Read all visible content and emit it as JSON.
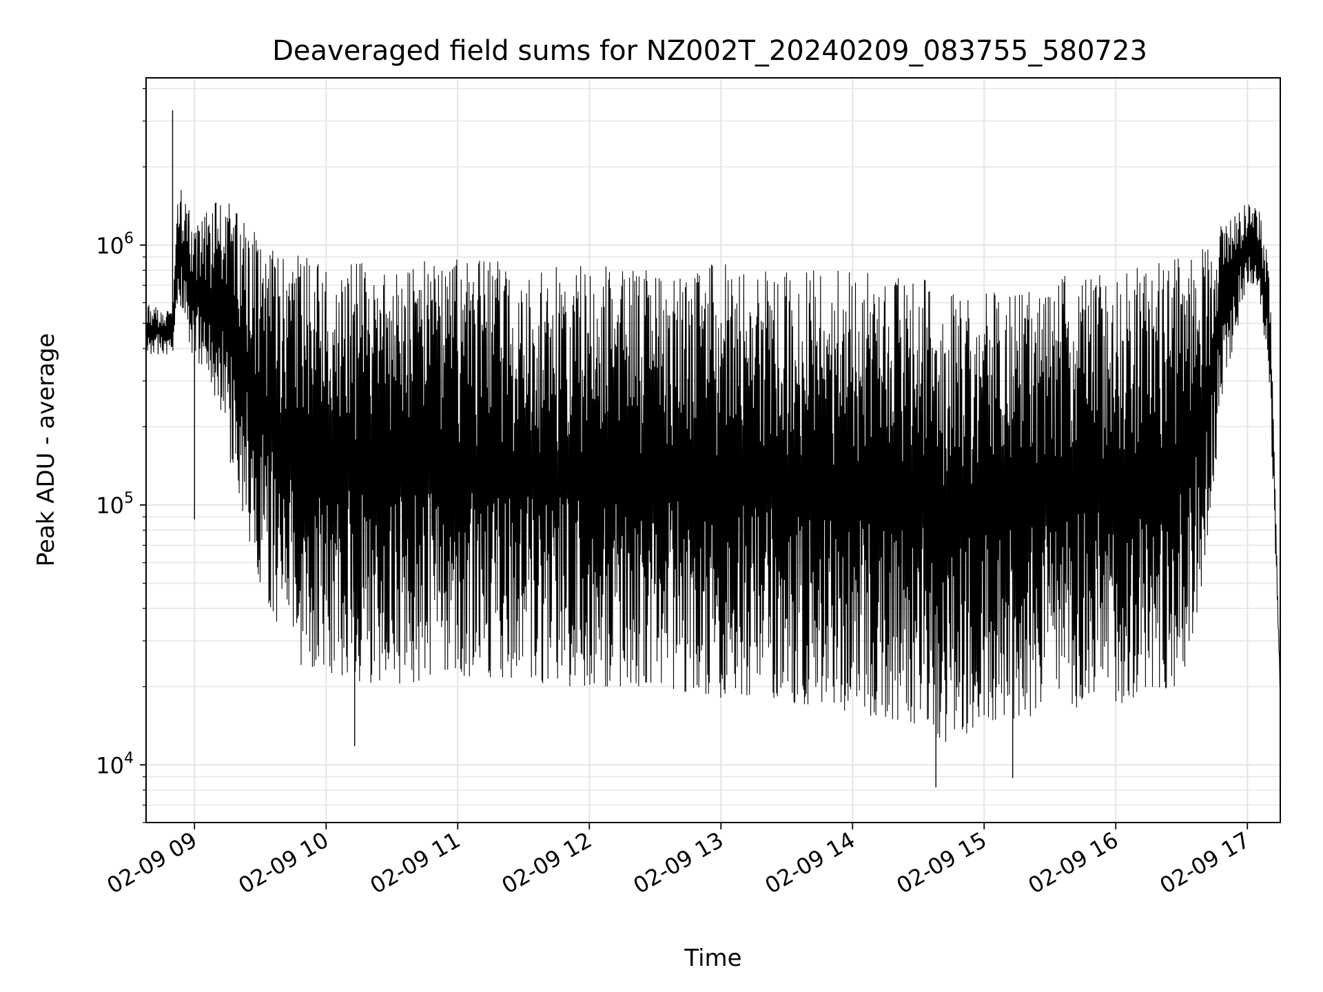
{
  "chart_data": {
    "type": "line",
    "title": "Deaveraged field sums for NZ002T_20240209_083755_580723",
    "xlabel": "Time",
    "ylabel": "Peak ADU - average",
    "yscale": "log",
    "grid": true,
    "xlim": [
      "2024-02-09T08:37:55",
      "2024-02-09T17:15:00"
    ],
    "ylim": [
      6000,
      4400000
    ],
    "x_ticks": [
      {
        "t": "2024-02-09T09:00:00",
        "label": "02-09 09"
      },
      {
        "t": "2024-02-09T10:00:00",
        "label": "02-09 10"
      },
      {
        "t": "2024-02-09T11:00:00",
        "label": "02-09 11"
      },
      {
        "t": "2024-02-09T12:00:00",
        "label": "02-09 12"
      },
      {
        "t": "2024-02-09T13:00:00",
        "label": "02-09 13"
      },
      {
        "t": "2024-02-09T14:00:00",
        "label": "02-09 14"
      },
      {
        "t": "2024-02-09T15:00:00",
        "label": "02-09 15"
      },
      {
        "t": "2024-02-09T16:00:00",
        "label": "02-09 16"
      },
      {
        "t": "2024-02-09T17:00:00",
        "label": "02-09 17"
      }
    ],
    "y_ticks": [
      {
        "value": 10000,
        "base": "10",
        "exp": "4"
      },
      {
        "value": 100000,
        "base": "10",
        "exp": "5"
      },
      {
        "value": 1000000,
        "base": "10",
        "exp": "6"
      }
    ],
    "line_color": "#000000",
    "envelope": {
      "time": [
        "2024-02-09T08:38",
        "2024-02-09T08:50",
        "2024-02-09T08:52",
        "2024-02-09T09:00",
        "2024-02-09T09:10",
        "2024-02-09T09:15",
        "2024-02-09T09:30",
        "2024-02-09T09:45",
        "2024-02-09T10:00",
        "2024-02-09T10:30",
        "2024-02-09T11:00",
        "2024-02-09T11:30",
        "2024-02-09T12:00",
        "2024-02-09T12:30",
        "2024-02-09T13:00",
        "2024-02-09T13:30",
        "2024-02-09T14:00",
        "2024-02-09T14:30",
        "2024-02-09T14:40",
        "2024-02-09T15:00",
        "2024-02-09T15:30",
        "2024-02-09T16:00",
        "2024-02-09T16:30",
        "2024-02-09T16:40",
        "2024-02-09T16:50",
        "2024-02-09T17:00",
        "2024-02-09T17:05",
        "2024-02-09T17:10",
        "2024-02-09T17:15"
      ],
      "upper": [
        600000,
        550000,
        1800000,
        1200000,
        1500000,
        1600000,
        1100000,
        1000000,
        900000,
        850000,
        900000,
        850000,
        850000,
        800000,
        850000,
        800000,
        800000,
        750000,
        700000,
        650000,
        750000,
        800000,
        900000,
        1000000,
        1300000,
        1500000,
        1400000,
        900000,
        20000
      ],
      "lower": [
        380000,
        380000,
        600000,
        350000,
        250000,
        150000,
        50000,
        25000,
        22000,
        20000,
        22000,
        20000,
        20000,
        20000,
        18000,
        17000,
        16000,
        14000,
        12000,
        14000,
        16000,
        17000,
        20000,
        50000,
        300000,
        700000,
        700000,
        300000,
        18000
      ]
    },
    "spikes": [
      {
        "t": "2024-02-09T08:50:00",
        "value": 3300000
      },
      {
        "t": "2024-02-09T09:00:00",
        "value": 88000
      },
      {
        "t": "2024-02-09T10:13:00",
        "value": 11800
      },
      {
        "t": "2024-02-09T14:38:00",
        "value": 8200
      },
      {
        "t": "2024-02-09T15:13:00",
        "value": 8900
      }
    ]
  }
}
